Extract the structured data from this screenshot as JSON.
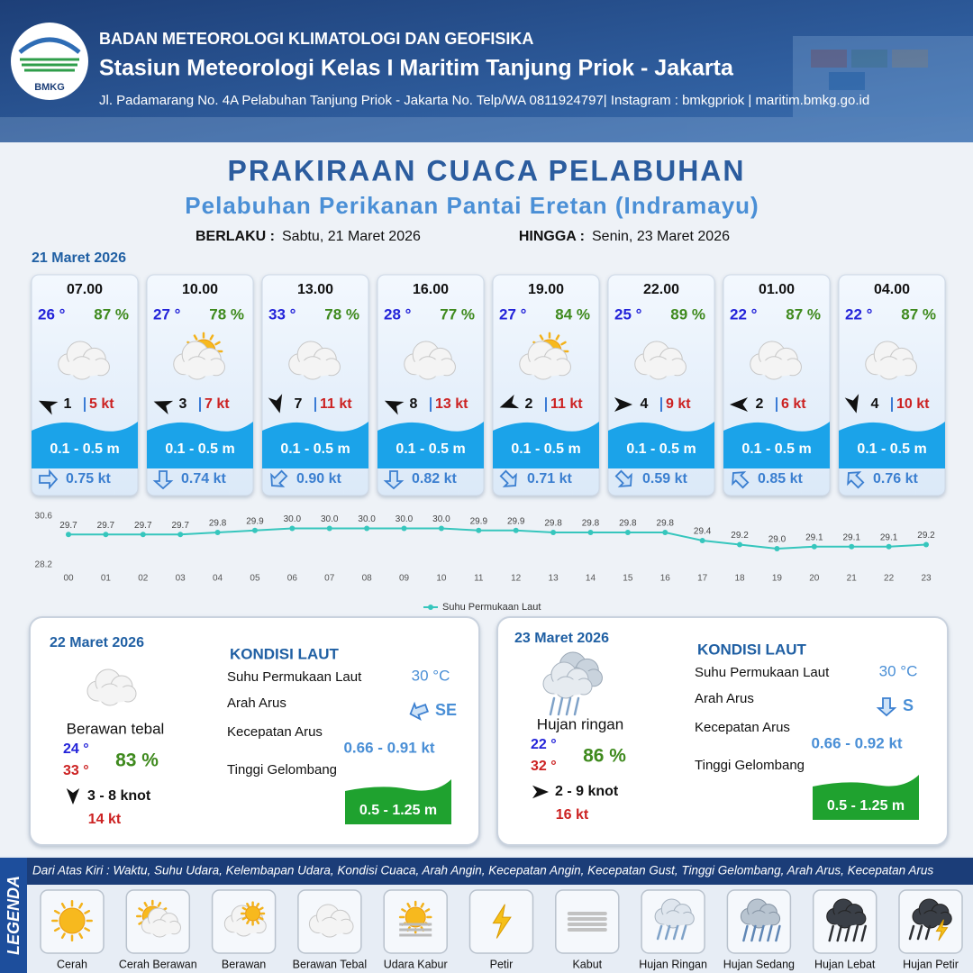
{
  "header": {
    "logo_text": "BMKG",
    "organization": "BADAN METEOROLOGI KLIMATOLOGI DAN GEOFISIKA",
    "station": "Stasiun Meteorologi Kelas I Maritim Tanjung Priok - Jakarta",
    "address": "Jl. Padamarang No. 4A Pelabuhan Tanjung Priok - Jakarta No. Telp/WA 0811924797| Instagram : bmkgpriok | maritim.bmkg.go.id"
  },
  "title": "PRAKIRAAN CUACA PELABUHAN",
  "subtitle": "Pelabuhan Perikanan Pantai Eretan (Indramayu)",
  "validity": {
    "from_label": "BERLAKU :",
    "from": "Sabtu, 21 Maret 2026",
    "to_label": "HINGGA :",
    "to": "Senin, 23 Maret 2026"
  },
  "day1": {
    "date": "21 Maret 2026",
    "forecasts": [
      {
        "time": "07.00",
        "temperature": "26 °",
        "humidity": "87 %",
        "wind": "1",
        "gust": "5 kt",
        "wave": "0.1 - 0.5 m",
        "current": "0.75 kt"
      },
      {
        "time": "10.00",
        "temperature": "27 °",
        "humidity": "78 %",
        "wind": "3",
        "gust": "7 kt",
        "wave": "0.1 - 0.5 m",
        "current": "0.74 kt"
      },
      {
        "time": "13.00",
        "temperature": "33 °",
        "humidity": "78 %",
        "wind": "7",
        "gust": "11 kt",
        "wave": "0.1 - 0.5 m",
        "current": "0.90 kt"
      },
      {
        "time": "16.00",
        "temperature": "28 °",
        "humidity": "77 %",
        "wind": "8",
        "gust": "13 kt",
        "wave": "0.1 - 0.5 m",
        "current": "0.82 kt"
      },
      {
        "time": "19.00",
        "temperature": "27 °",
        "humidity": "84 %",
        "wind": "2",
        "gust": "11 kt",
        "wave": "0.1 - 0.5 m",
        "current": "0.71 kt"
      },
      {
        "time": "22.00",
        "temperature": "25 °",
        "humidity": "89 %",
        "wind": "4",
        "gust": "9 kt",
        "wave": "0.1 - 0.5 m",
        "current": "0.59 kt"
      },
      {
        "time": "01.00",
        "temperature": "22 °",
        "humidity": "87 %",
        "wind": "2",
        "gust": "6 kt",
        "wave": "0.1 - 0.5 m",
        "current": "0.85 kt"
      },
      {
        "time": "04.00",
        "temperature": "22 °",
        "humidity": "87 %",
        "wind": "4",
        "gust": "10 kt",
        "wave": "0.1 - 0.5 m",
        "current": "0.76 kt"
      }
    ]
  },
  "chart_data": {
    "type": "line",
    "categories": [
      "00",
      "01",
      "02",
      "03",
      "04",
      "05",
      "06",
      "07",
      "08",
      "09",
      "10",
      "11",
      "12",
      "13",
      "14",
      "15",
      "16",
      "17",
      "18",
      "19",
      "20",
      "21",
      "22",
      "23"
    ],
    "series": [
      {
        "name": "Suhu Permukaan Laut",
        "color": "#36c6bd",
        "values": [
          29.7,
          29.7,
          29.7,
          29.7,
          29.8,
          29.9,
          30.0,
          30.0,
          30.0,
          30.0,
          30.0,
          29.9,
          29.9,
          29.8,
          29.8,
          29.8,
          29.8,
          29.4,
          29.2,
          29.0,
          29.1,
          29.1,
          29.1,
          29.2
        ],
        "value_labels": [
          "29.7",
          "29.7",
          "29.7",
          "29.7",
          "29.8",
          "29.9",
          "30.0",
          "30.0",
          "30.0",
          "30.0",
          "30.0",
          "29.9",
          "29.9",
          "29.8",
          "29.8",
          "29.8",
          "29.8",
          "29.4",
          "29.2",
          "29.0",
          "29.1",
          "29.1",
          "29.1",
          "29.2"
        ]
      }
    ],
    "ylim": [
      28.2,
      30.6
    ],
    "yticks": [
      28.2,
      30.6
    ],
    "legend": "bottom"
  },
  "days": [
    {
      "date": "22 Maret 2026",
      "condition": "Berawan tebal",
      "temp_min": "24 °",
      "temp_max": "33 °",
      "humidity": "83 %",
      "wind": "3 - 8 knot",
      "gust": "14 kt",
      "sea_title": "KONDISI LAUT",
      "sst_label": "Suhu Permukaan Laut",
      "sst": "30 °C",
      "current_dir_label": "Arah Arus",
      "current_dir": "SE",
      "current_speed_label": "Kecepatan Arus",
      "current_speed": "0.66 - 0.91 kt",
      "wave_label": "Tinggi Gelombang",
      "wave": "0.5 - 1.25 m"
    },
    {
      "date": "23 Maret 2026",
      "condition": "Hujan ringan",
      "temp_min": "22 °",
      "temp_max": "32 °",
      "humidity": "86 %",
      "wind": "2 - 9 knot",
      "gust": "16 kt",
      "sea_title": "KONDISI LAUT",
      "sst_label": "Suhu Permukaan Laut",
      "sst": "30 °C",
      "current_dir_label": "Arah Arus",
      "current_dir": "S",
      "current_speed_label": "Kecepatan Arus",
      "current_speed": "0.66 - 0.92 kt",
      "wave_label": "Tinggi Gelombang",
      "wave": "0.5 - 1.25 m"
    }
  ],
  "legend": {
    "title": "LEGENDA",
    "description": "Dari Atas Kiri : Waktu, Suhu Udara, Kelembapan Udara, Kondisi Cuaca, Arah Angin, Kecepatan Angin, Kecepatan Gust, Tinggi Gelombang, Arah Arus, Kecepatan Arus",
    "items": [
      "Cerah",
      "Cerah Berawan",
      "Berawan",
      "Berawan Tebal",
      "Udara Kabur",
      "Petir",
      "Kabut",
      "Hujan Ringan",
      "Hujan Sedang",
      "Hujan Lebat",
      "Hujan Petir"
    ]
  }
}
